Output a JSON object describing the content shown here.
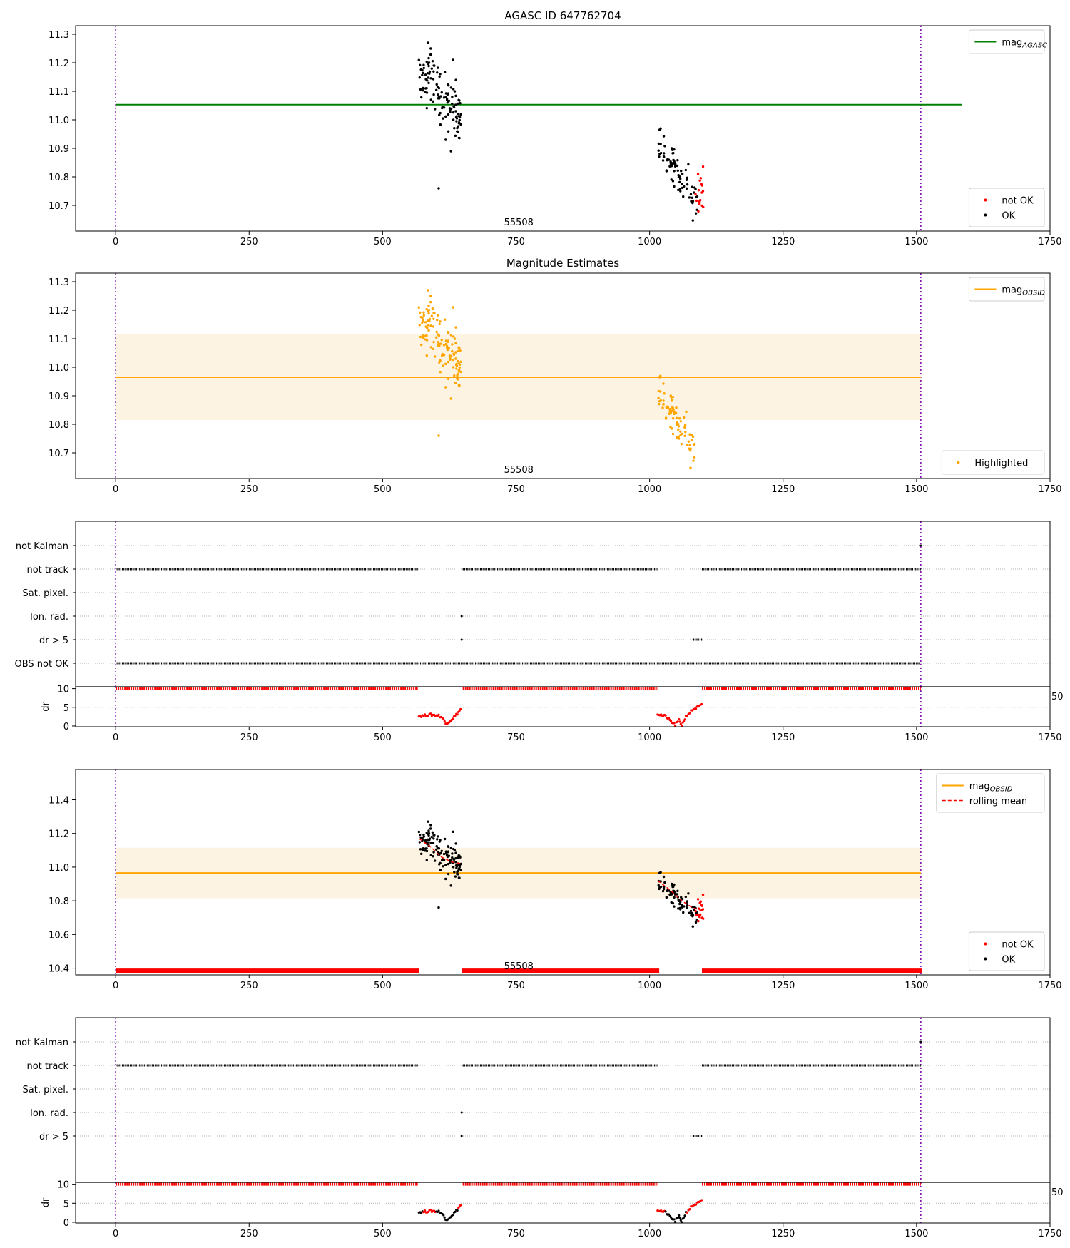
{
  "chart_data": [
    {
      "type": "scatter",
      "panel": "agasc",
      "title": "AGASC ID 647762704",
      "center_label": "55508",
      "xlim": [
        -75,
        1750
      ],
      "ylim": [
        10.61,
        11.33
      ],
      "xticks": [
        0,
        250,
        500,
        750,
        1000,
        1250,
        1500,
        1750
      ],
      "yticks": [
        10.7,
        10.8,
        10.9,
        11.0,
        11.1,
        11.2,
        11.3
      ],
      "vlines": [
        0,
        1508
      ],
      "legend_top": {
        "position": "top-right",
        "entries": [
          {
            "label": "mag",
            "sub": "AGASC",
            "color": "#008000",
            "style": "line"
          }
        ]
      },
      "legend_bottom": {
        "position": "bottom-right",
        "entries": [
          {
            "label": "not OK",
            "color": "#ff0000",
            "style": "dot"
          },
          {
            "label": "OK",
            "color": "#000000",
            "style": "dot"
          }
        ]
      },
      "hline": {
        "y": 11.053,
        "x": [
          0,
          1585
        ],
        "color": "#008000"
      },
      "band": null,
      "series": [
        {
          "color": "#000000",
          "gen": {
            "x0": 568,
            "x1": 648,
            "n": 120,
            "a": 11.19,
            "b": 11.0,
            "noise": 0.05,
            "seed": 3
          }
        },
        {
          "color": "#000000",
          "points": [
            [
              590,
              11.25
            ],
            [
              585,
              11.27
            ],
            [
              632,
              11.21
            ],
            [
              605,
              10.76
            ],
            [
              628,
              10.89
            ],
            [
              618,
              10.93
            ]
          ]
        },
        {
          "color": "#000000",
          "gen": {
            "x0": 1015,
            "x1": 1090,
            "n": 80,
            "a": 10.94,
            "b": 10.7,
            "noise": 0.035,
            "seed": 7
          }
        },
        {
          "color": "#ff0000",
          "gen": {
            "x0": 1085,
            "x1": 1102,
            "n": 18,
            "a": 10.7,
            "b": 10.78,
            "noise": 0.045,
            "seed": 11
          }
        }
      ]
    },
    {
      "type": "scatter",
      "panel": "estimates",
      "title": "Magnitude Estimates",
      "center_label": "55508",
      "xlim": [
        -75,
        1750
      ],
      "ylim": [
        10.61,
        11.33
      ],
      "xticks": [
        0,
        250,
        500,
        750,
        1000,
        1250,
        1500,
        1750
      ],
      "yticks": [
        10.7,
        10.8,
        10.9,
        11.0,
        11.1,
        11.2,
        11.3
      ],
      "vlines": [
        0,
        1508
      ],
      "legend_top": {
        "position": "top-right",
        "entries": [
          {
            "label": "mag",
            "sub": "OBSID",
            "color": "#ffa500",
            "style": "line"
          }
        ]
      },
      "legend_bottom": {
        "position": "bottom-right",
        "entries": [
          {
            "label": "Highlighted",
            "color": "#ffa500",
            "style": "dot"
          }
        ]
      },
      "hline": {
        "y": 10.965,
        "x": [
          0,
          1508
        ],
        "color": "#ffa500"
      },
      "band": {
        "y0": 10.815,
        "y1": 11.115,
        "x": [
          0,
          1508
        ],
        "color": "#fdf3e2"
      },
      "series": [
        {
          "color": "#ffa500",
          "gen": {
            "x0": 568,
            "x1": 648,
            "n": 120,
            "a": 11.19,
            "b": 11.0,
            "noise": 0.05,
            "seed": 3
          }
        },
        {
          "color": "#ffa500",
          "points": [
            [
              590,
              11.25
            ],
            [
              585,
              11.27
            ],
            [
              632,
              11.21
            ],
            [
              605,
              10.76
            ],
            [
              628,
              10.89
            ],
            [
              618,
              10.93
            ]
          ]
        },
        {
          "color": "#ffa500",
          "gen": {
            "x0": 1015,
            "x1": 1085,
            "n": 80,
            "a": 10.94,
            "b": 10.7,
            "noise": 0.035,
            "seed": 7
          }
        }
      ]
    },
    {
      "type": "scatter",
      "panel": "flags",
      "xlim": [
        -75,
        1750
      ],
      "categories": [
        "not Kalman",
        "not track",
        "Sat. pixel.",
        "Ion. rad.",
        "dr > 5",
        "OBS not OK"
      ],
      "vlines": [
        0,
        1508
      ],
      "rows": [
        {
          "category": "not Kalman",
          "segments": [],
          "points": [
            1508
          ]
        },
        {
          "category": "not track",
          "segments": [
            [
              0,
              566
            ],
            [
              650,
              1016
            ],
            [
              1098,
              1508
            ]
          ],
          "points": []
        },
        {
          "category": "Sat. pixel.",
          "segments": [],
          "points": []
        },
        {
          "category": "Ion. rad.",
          "segments": [],
          "points": [
            648
          ]
        },
        {
          "category": "dr > 5",
          "segments": [
            [
              1082,
              1100
            ]
          ],
          "points": [
            648
          ]
        },
        {
          "category": "OBS not OK",
          "segments": [
            [
              0,
              1508
            ]
          ],
          "points": []
        }
      ]
    },
    {
      "type": "scatter",
      "panel": "dr1",
      "ylabel": "dr",
      "xlim": [
        -75,
        1750
      ],
      "ylim": [
        -0.2,
        10.5
      ],
      "yticks": [
        0,
        5,
        10
      ],
      "xticks": [
        0,
        250,
        500,
        750,
        1000,
        1250,
        1500,
        1750
      ],
      "vlines": [
        0,
        1508
      ],
      "right_label": "50",
      "hsegments": [
        {
          "y": 10,
          "segments": [
            [
              0,
              566
            ],
            [
              650,
              1016
            ],
            [
              1098,
              1508
            ]
          ],
          "color": "#ff0000"
        }
      ],
      "curves": [
        {
          "color": "#ff0000",
          "pts": [
            [
              568,
              2.6
            ],
            [
              590,
              3.0
            ],
            [
              605,
              2.8
            ],
            [
              612,
              2.2
            ],
            [
              618,
              0.7
            ],
            [
              625,
              1.2
            ],
            [
              638,
              3.0
            ],
            [
              648,
              4.8
            ]
          ]
        },
        {
          "color": "#ff0000",
          "pts": [
            [
              1015,
              3.2
            ],
            [
              1030,
              2.6
            ],
            [
              1040,
              1.2
            ],
            [
              1048,
              0.3
            ],
            [
              1055,
              1.5
            ],
            [
              1060,
              0.2
            ],
            [
              1068,
              2.5
            ],
            [
              1080,
              4.3
            ],
            [
              1100,
              5.8
            ]
          ]
        }
      ],
      "curve_split": null
    },
    {
      "type": "scatter",
      "panel": "rolling",
      "center_label": "55508",
      "xlim": [
        -75,
        1750
      ],
      "ylim": [
        10.36,
        11.58
      ],
      "xticks": [
        0,
        250,
        500,
        750,
        1000,
        1250,
        1500,
        1750
      ],
      "yticks": [
        10.4,
        10.6,
        10.8,
        11.0,
        11.2,
        11.4
      ],
      "ytick_format": 1,
      "vlines": [
        0,
        1508
      ],
      "legend_top": {
        "position": "top-right",
        "entries": [
          {
            "label": "mag",
            "sub": "OBSID",
            "color": "#ffa500",
            "style": "line"
          },
          {
            "label": "rolling mean",
            "color": "#ff0000",
            "style": "dash"
          }
        ]
      },
      "legend_bottom": {
        "position": "bottom-right",
        "entries": [
          {
            "label": "not OK",
            "color": "#ff0000",
            "style": "dot"
          },
          {
            "label": "OK",
            "color": "#000000",
            "style": "dot"
          }
        ]
      },
      "hline": {
        "y": 10.965,
        "x": [
          0,
          1508
        ],
        "color": "#ffa500"
      },
      "band": {
        "y0": 10.815,
        "y1": 11.115,
        "x": [
          0,
          1508
        ],
        "color": "#fdf3e2"
      },
      "bottom_line": {
        "y": 10.385,
        "segments": [
          [
            0,
            568
          ],
          [
            648,
            1018
          ],
          [
            1098,
            1510
          ]
        ],
        "color": "#ff0000"
      },
      "rolling": [
        [
          [
            568,
            11.17
          ],
          [
            590,
            11.12
          ],
          [
            610,
            11.06
          ],
          [
            630,
            11.03
          ],
          [
            648,
            11.02
          ]
        ],
        [
          [
            1015,
            10.92
          ],
          [
            1040,
            10.86
          ],
          [
            1060,
            10.8
          ],
          [
            1080,
            10.76
          ],
          [
            1100,
            10.74
          ]
        ]
      ],
      "series": [
        {
          "color": "#000000",
          "gen": {
            "x0": 568,
            "x1": 648,
            "n": 120,
            "a": 11.19,
            "b": 11.0,
            "noise": 0.05,
            "seed": 3
          }
        },
        {
          "color": "#000000",
          "points": [
            [
              590,
              11.25
            ],
            [
              585,
              11.27
            ],
            [
              632,
              11.21
            ],
            [
              605,
              10.76
            ],
            [
              628,
              10.89
            ],
            [
              618,
              10.93
            ]
          ]
        },
        {
          "color": "#000000",
          "gen": {
            "x0": 1015,
            "x1": 1090,
            "n": 80,
            "a": 10.94,
            "b": 10.7,
            "noise": 0.035,
            "seed": 7
          }
        },
        {
          "color": "#ff0000",
          "gen": {
            "x0": 1085,
            "x1": 1102,
            "n": 18,
            "a": 10.7,
            "b": 10.78,
            "noise": 0.045,
            "seed": 11
          }
        }
      ]
    },
    {
      "type": "scatter",
      "panel": "flags2",
      "xlim": [
        -75,
        1750
      ],
      "categories": [
        "not Kalman",
        "not track",
        "Sat. pixel.",
        "Ion. rad.",
        "dr > 5"
      ],
      "vlines": [
        0,
        1508
      ],
      "rows": [
        {
          "category": "not Kalman",
          "segments": [],
          "points": [
            1508
          ]
        },
        {
          "category": "not track",
          "segments": [
            [
              0,
              566
            ],
            [
              650,
              1016
            ],
            [
              1098,
              1508
            ]
          ],
          "points": []
        },
        {
          "category": "Sat. pixel.",
          "segments": [],
          "points": []
        },
        {
          "category": "Ion. rad.",
          "segments": [],
          "points": [
            648
          ]
        },
        {
          "category": "dr > 5",
          "segments": [
            [
              1082,
              1100
            ]
          ],
          "points": [
            648
          ]
        }
      ]
    },
    {
      "type": "scatter",
      "panel": "dr2",
      "ylabel": "dr",
      "xlim": [
        -75,
        1750
      ],
      "ylim": [
        -0.2,
        10.5
      ],
      "yticks": [
        0,
        5,
        10
      ],
      "xticks": [
        0,
        250,
        500,
        750,
        1000,
        1250,
        1500,
        1750
      ],
      "vlines": [
        0,
        1508
      ],
      "right_label": "50",
      "hsegments": [
        {
          "y": 10,
          "segments": [
            [
              0,
              566
            ],
            [
              650,
              1016
            ],
            [
              1098,
              1508
            ]
          ],
          "color": "#ff0000"
        }
      ],
      "curves": [
        {
          "color": "#ff0000",
          "pts": [
            [
              568,
              2.6
            ],
            [
              590,
              3.0
            ],
            [
              605,
              2.8
            ],
            [
              612,
              2.2
            ],
            [
              618,
              0.7
            ],
            [
              625,
              1.2
            ],
            [
              638,
              3.0
            ],
            [
              648,
              4.8
            ]
          ]
        },
        {
          "color": "#ff0000",
          "pts": [
            [
              1015,
              3.2
            ],
            [
              1030,
              2.6
            ],
            [
              1040,
              1.2
            ],
            [
              1048,
              0.3
            ],
            [
              1055,
              1.5
            ],
            [
              1060,
              0.2
            ],
            [
              1068,
              2.5
            ],
            [
              1080,
              4.3
            ],
            [
              1100,
              5.8
            ]
          ]
        }
      ],
      "curve_split": {
        "ok_ranges": [
          [
            568,
            575
          ],
          [
            600,
            640
          ],
          [
            1028,
            1068
          ]
        ],
        "ok_color": "#000000"
      }
    }
  ]
}
